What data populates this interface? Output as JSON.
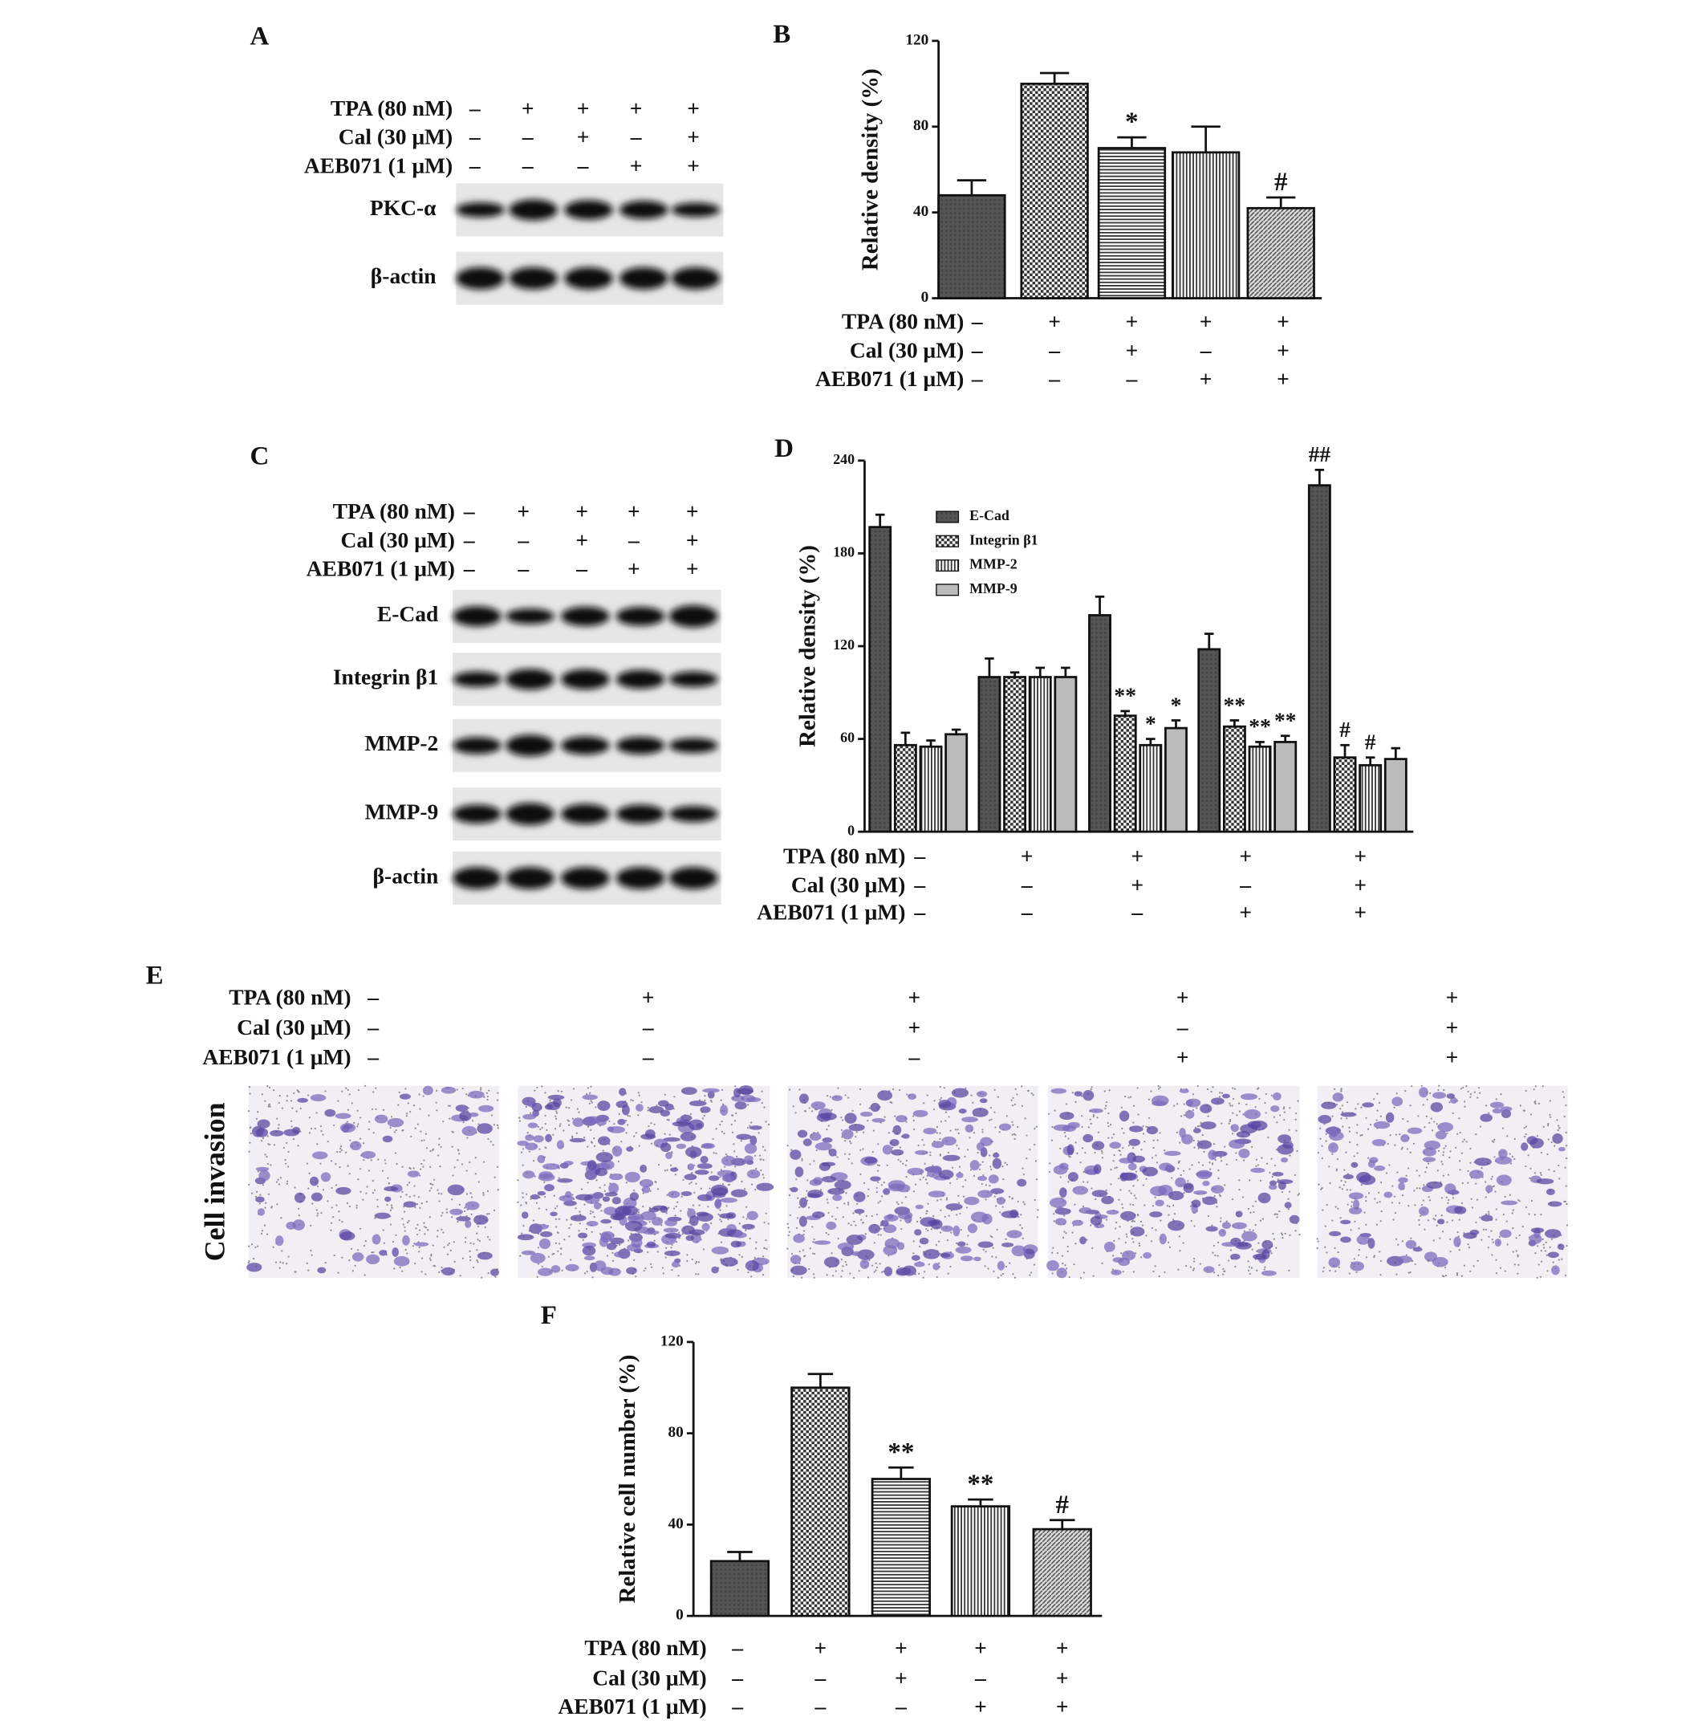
{
  "panel_labels": [
    "A",
    "B",
    "C",
    "D",
    "E",
    "F"
  ],
  "treatments": {
    "rows": [
      "TPA (80 nM)",
      "Cal (30 μM)",
      "AEB071 (1 μM)"
    ],
    "signs": [
      [
        "–",
        "+",
        "+",
        "+",
        "+"
      ],
      [
        "–",
        "–",
        "+",
        "–",
        "+"
      ],
      [
        "–",
        "–",
        "–",
        "+",
        "+"
      ]
    ]
  },
  "blot_A": {
    "labels": [
      "PKC-α",
      "β-actin"
    ]
  },
  "blot_C": {
    "labels": [
      "E-Cad",
      "Integrin β1",
      "MMP-2",
      "MMP-9",
      "β-actin"
    ]
  },
  "panel_E": {
    "y_label": "Cell invasion"
  },
  "chart_data": [
    {
      "type": "bar",
      "y_label": "Relative density (%)",
      "values": [
        48,
        100,
        70,
        68,
        42
      ],
      "errors": [
        7,
        5,
        5,
        12,
        5
      ],
      "annotations": [
        null,
        null,
        "*",
        null,
        "#"
      ],
      "fills": [
        "solid",
        "checker",
        "hlines",
        "vlines",
        "diag"
      ],
      "ylim": [
        0,
        120
      ],
      "yticks": [
        0,
        40,
        80,
        120
      ]
    },
    {
      "type": "grouped-bar",
      "y_label": "Relative density (%)",
      "legend": "upper-left",
      "series": [
        {
          "name": "E-Cad",
          "fill": "solid",
          "values": [
            197,
            100,
            140,
            118,
            224
          ],
          "errors": [
            8,
            12,
            12,
            10,
            10
          ],
          "annotations": [
            null,
            null,
            null,
            null,
            "##"
          ]
        },
        {
          "name": "Integrin β1",
          "fill": "checker",
          "values": [
            56,
            100,
            75,
            68,
            48
          ],
          "errors": [
            8,
            3,
            3,
            4,
            8
          ],
          "annotations": [
            null,
            null,
            "**",
            "**",
            "#"
          ]
        },
        {
          "name": "MMP-2",
          "fill": "vlines",
          "values": [
            55,
            100,
            56,
            55,
            43
          ],
          "errors": [
            4,
            6,
            4,
            3,
            5
          ],
          "annotations": [
            null,
            null,
            "*",
            "**",
            "#"
          ]
        },
        {
          "name": "MMP-9",
          "fill": "light",
          "values": [
            63,
            100,
            67,
            58,
            47
          ],
          "errors": [
            3,
            6,
            5,
            4,
            7
          ],
          "annotations": [
            null,
            null,
            "*",
            "**",
            null
          ]
        }
      ],
      "ylim": [
        0,
        240
      ],
      "yticks": [
        0,
        60,
        120,
        180,
        240
      ]
    },
    {
      "type": "bar",
      "y_label": "Relative cell number (%)",
      "values": [
        24,
        100,
        60,
        48,
        38
      ],
      "errors": [
        4,
        6,
        5,
        3,
        4
      ],
      "annotations": [
        null,
        null,
        "**",
        "**",
        "#"
      ],
      "fills": [
        "solid",
        "checker",
        "hlines",
        "vlines",
        "diag"
      ],
      "ylim": [
        0,
        120
      ],
      "yticks": [
        0,
        40,
        80,
        120
      ]
    }
  ]
}
